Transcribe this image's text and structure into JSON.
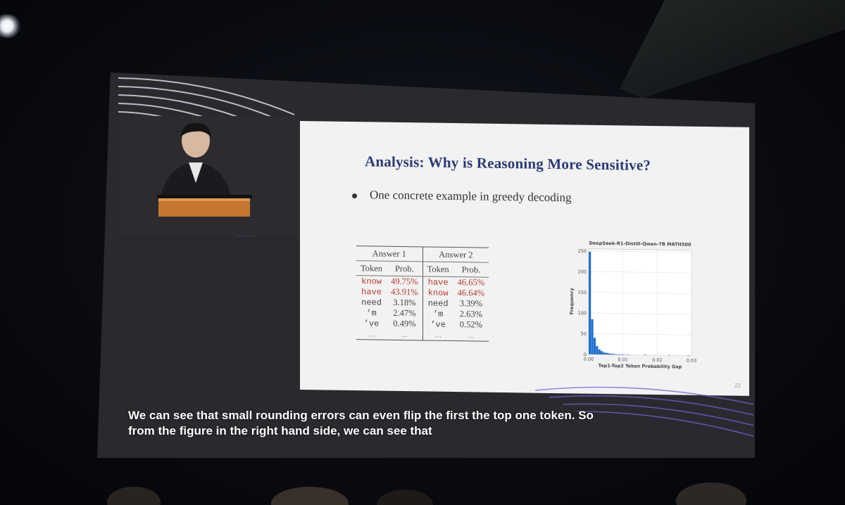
{
  "slide": {
    "title": "Analysis: Why is Reasoning More Sensitive?",
    "bullet": "One concrete example in greedy decoding",
    "page_number": "22",
    "table": {
      "groups": [
        "Answer 1",
        "Answer 2"
      ],
      "headers": [
        "Token",
        "Prob.",
        "Token",
        "Prob."
      ],
      "rows": [
        {
          "t1": "know",
          "p1": "49.75%",
          "t2": "have",
          "p2": "46.65%"
        },
        {
          "t1": "have",
          "p1": "43.91%",
          "t2": "know",
          "p2": "46.64%"
        },
        {
          "t1": "need",
          "p1": "3.18%",
          "t2": "need",
          "p2": "3.39%"
        },
        {
          "t1": "’m",
          "p1": "2.47%",
          "t2": "’m",
          "p2": "2.63%"
        },
        {
          "t1": "’ve",
          "p1": "0.49%",
          "t2": "’ve",
          "p2": "0.52%"
        },
        {
          "t1": "...",
          "p1": "...",
          "t2": "...",
          "p2": "..."
        }
      ],
      "highlight_color": "#b73a2e"
    }
  },
  "chart_data": {
    "type": "bar",
    "title": "DeepSeek-R1-Distill-Qwen-7B MATH500",
    "xlabel": "Top1-Top2 Token Probability Gap",
    "ylabel": "Frequency",
    "xlim": [
      0,
      0.03
    ],
    "ylim": [
      0,
      255
    ],
    "xticks": [
      "0.00",
      "0.01",
      "0.02",
      "0.03"
    ],
    "yticks": [
      "0",
      "50",
      "100",
      "150",
      "200",
      "250"
    ],
    "bin_width": 0.0007,
    "values": [
      248,
      85,
      40,
      20,
      12,
      8,
      5,
      4,
      3,
      2,
      2,
      1,
      1,
      1,
      1,
      0,
      1,
      0,
      0,
      0,
      0,
      0,
      0,
      1,
      0,
      0,
      0,
      0,
      0,
      0,
      0,
      0,
      0,
      1,
      0,
      0,
      0,
      0,
      0,
      0,
      0,
      1
    ],
    "bar_color": "#1f6fd1",
    "grid": true
  },
  "caption": {
    "line1": "We can see that small rounding errors can even flip the first the top one token. So",
    "line2": "from the figure in the right hand side, we can see that"
  }
}
